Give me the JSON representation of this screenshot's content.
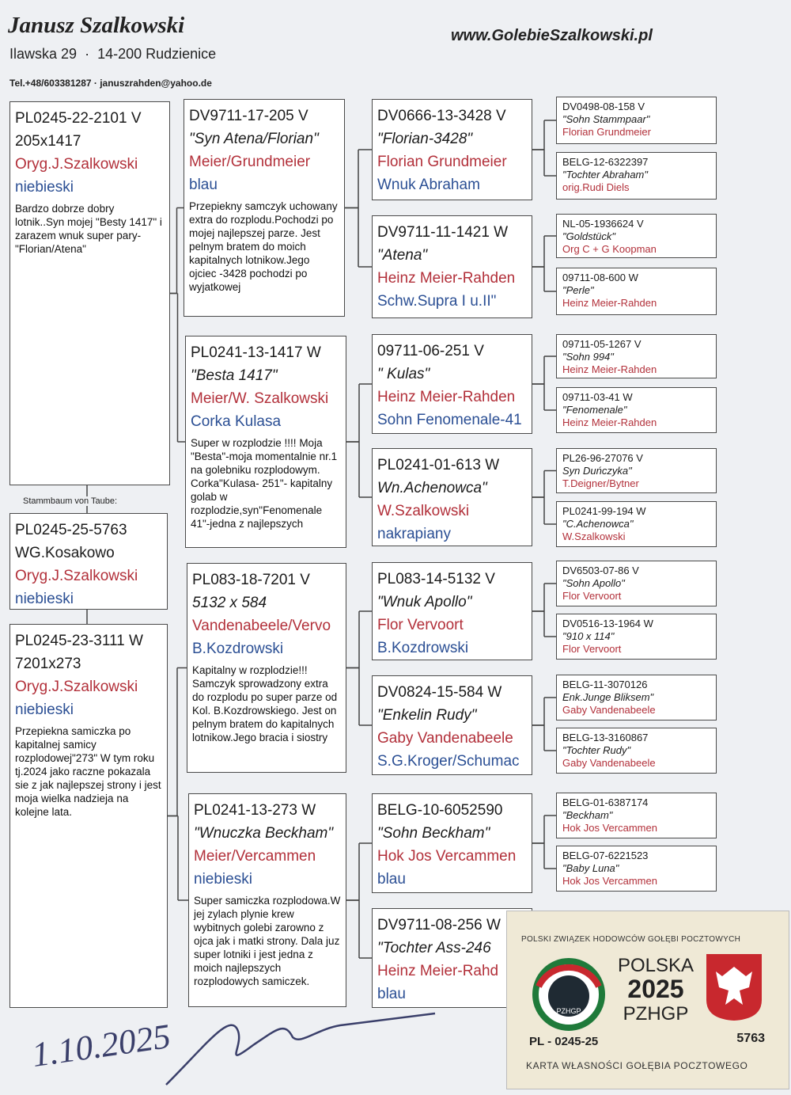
{
  "header": {
    "name": "Janusz Szalkowski",
    "street": "Ilawska 29",
    "separator": "·",
    "city": "14-200 Rudzienice",
    "contact": "Tel.+48/603381287 · januszrahden@yahoo.de",
    "website": "www.GolebieSzalkowski.pl",
    "stammbaum_label": "Stammbaum von Taube:"
  },
  "boxes": [
    {
      "lines": [
        "PL0245-22-2101 V",
        "205x1417",
        "Oryg.J.Szalkowski",
        "niebieski"
      ],
      "note": "Bardzo dobrze dobry lotnik..Syn mojej \"Besty 1417\" i zarazem wnuk super pary-\"Florian/Atena\""
    },
    {
      "lines": [
        "PL0245-25-5763",
        "WG.Kosakowo",
        "Oryg.J.Szalkowski",
        "niebieski"
      ]
    },
    {
      "lines": [
        "PL0245-23-3111 W",
        "7201x273",
        "Oryg.J.Szalkowski",
        "niebieski"
      ],
      "note": "Przepiekna samiczka po kapitalnej samicy rozplodowej\"273\" W tym roku tj.2024 jako raczne pokazala sie z jak najlepszej strony i jest moja wielka nadzieja na kolejne lata."
    },
    {
      "lines": [
        "DV9711-17-205 V",
        "\"Syn Atena/Florian\"",
        "Meier/Grundmeier",
        "blau"
      ],
      "note": "Przepiekny samczyk uchowany extra do rozplodu.Pochodzi po mojej najlepszej parze. Jest pelnym bratem do moich kapitalnych lotnikow.Jego ojciec -3428 pochodzi po wyjatkowej"
    },
    {
      "lines": [
        "PL0241-13-1417 W",
        "\"Besta 1417\"",
        "Meier/W. Szalkowski",
        "Corka Kulasa"
      ],
      "note": "Super w rozplodzie !!!! Moja \"Besta\"-moja momentalnie nr.1 na golebniku rozplodowym. Corka\"Kulasa- 251\"- kapitalny golab w rozplodzie,syn\"Fenomenale 41\"-jedna z najlepszych"
    },
    {
      "lines": [
        "PL083-18-7201 V",
        "5132 x 584",
        "Vandenabeele/Vervo",
        "B.Kozdrowski"
      ],
      "note": "Kapitalny w rozplodzie!!! Samczyk sprowadzony extra do rozplodu po super parze od Kol. B.Kozdrowskiego. Jest on pelnym bratem do kapitalnych lotnikow.Jego bracia i siostry"
    },
    {
      "lines": [
        "PL0241-13-273 W",
        "\"Wnuczka Beckham\"",
        "Meier/Vercammen",
        "niebieski"
      ],
      "note": "Super samiczka rozplodowa.W jej zylach plynie krew wybitnych golebi zarowno z ojca jak i matki strony. Dala juz super lotniki i jest jedna z moich najlepszych rozplodowych samiczek."
    },
    {
      "lines": [
        "DV0666-13-3428 V",
        "\"Florian-3428\"",
        "Florian Grundmeier",
        "Wnuk Abraham"
      ]
    },
    {
      "lines": [
        "DV9711-11-1421 W",
        "\"Atena\"",
        "Heinz Meier-Rahden",
        "Schw.Supra I u.II\""
      ]
    },
    {
      "lines": [
        "09711-06-251 V",
        "\" Kulas\"",
        "Heinz Meier-Rahden",
        "Sohn Fenomenale-41"
      ]
    },
    {
      "lines": [
        "PL0241-01-613 W",
        "Wn.Achenowca\"",
        "W.Szalkowski",
        "nakrapiany"
      ]
    },
    {
      "lines": [
        "PL083-14-5132 V",
        "\"Wnuk Apollo\"",
        "Flor Vervoort",
        "B.Kozdrowski"
      ]
    },
    {
      "lines": [
        "DV0824-15-584 W",
        "\"Enkelin Rudy\"",
        "Gaby Vandenabeele",
        "S.G.Kroger/Schumac"
      ]
    },
    {
      "lines": [
        "BELG-10-6052590",
        "\"Sohn Beckham\"",
        "Hok Jos Vercammen",
        "blau"
      ]
    },
    {
      "lines": [
        "DV9711-08-256 W",
        "\"Tochter Ass-246",
        "Heinz Meier-Rahd",
        "blau"
      ]
    },
    {
      "lines": [
        "DV0498-08-158 V",
        "\"Sohn Stammpaar\"",
        "Florian Grundmeier"
      ]
    },
    {
      "lines": [
        "BELG-12-6322397",
        "\"Tochter Abraham\"",
        "orig.Rudi Diels"
      ]
    },
    {
      "lines": [
        "NL-05-1936624 V",
        "\"Goldstück\"",
        "Org C + G Koopman"
      ]
    },
    {
      "lines": [
        "09711-08-600 W",
        "\"Perle\"",
        "Heinz Meier-Rahden"
      ]
    },
    {
      "lines": [
        "09711-05-1267 V",
        "\"Sohn 994\"",
        "Heinz Meier-Rahden"
      ]
    },
    {
      "lines": [
        "09711-03-41 W",
        "\"Fenomenale\"",
        "Heinz Meier-Rahden"
      ]
    },
    {
      "lines": [
        "PL26-96-27076 V",
        "Syn Duńczyka\"",
        "T.Deigner/Bytner"
      ]
    },
    {
      "lines": [
        "PL0241-99-194 W",
        "\"C.Achenowca\"",
        "W.Szalkowski"
      ]
    },
    {
      "lines": [
        "DV6503-07-86 V",
        "\"Sohn Apollo\"",
        "Flor Vervoort"
      ]
    },
    {
      "lines": [
        "DV0516-13-1964 W",
        "\"910 x 114\"",
        "Flor Vervoort"
      ]
    },
    {
      "lines": [
        "BELG-11-3070126",
        "Enk.Junge Bliksem\"",
        "Gaby Vandenabeele"
      ]
    },
    {
      "lines": [
        "BELG-13-3160867",
        "\"Tochter Rudy\"",
        "Gaby Vandenabeele"
      ]
    },
    {
      "lines": [
        "BELG-01-6387174",
        "\"Beckham\"",
        "Hok Jos Vercammen"
      ]
    },
    {
      "lines": [
        "BELG-07-6221523",
        "\"Baby Luna\"",
        "Hok Jos Vercammen"
      ]
    }
  ],
  "signature_date": "1.10.2025",
  "card": {
    "union": "POLSKI ZWIĄZEK HODOWCÓW GOŁĘBI POCZTOWYCH",
    "logo": "PZHGP",
    "country": "POLSKA",
    "year": "2025",
    "org": "PZHGP",
    "ring": "PL - 0245-25",
    "number": "5763",
    "footer": "KARTA WŁASNOŚCI GOŁĘBIA POCZTOWEGO"
  }
}
